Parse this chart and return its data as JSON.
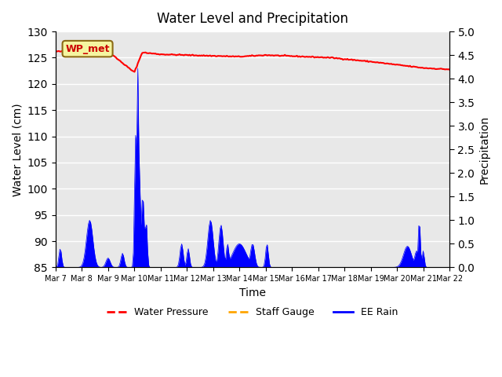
{
  "title": "Water Level and Precipitation",
  "xlabel": "Time",
  "ylabel_left": "Water Level (cm)",
  "ylabel_right": "Precipitation",
  "ylim_left": [
    85,
    130
  ],
  "ylim_right": [
    0.0,
    5.0
  ],
  "yticks_left": [
    85,
    90,
    95,
    100,
    105,
    110,
    115,
    120,
    125,
    130
  ],
  "yticks_right": [
    0.0,
    0.5,
    1.0,
    1.5,
    2.0,
    2.5,
    3.0,
    3.5,
    4.0,
    4.5,
    5.0
  ],
  "x_tick_labels": [
    "Mar 7",
    "Mar 8",
    "Mar 9",
    "Mar 10",
    "Mar 11",
    "Mar 12",
    "Mar 13",
    "Mar 14",
    "Mar 15",
    "Mar 16",
    "Mar 17",
    "Mar 18",
    "Mar 19",
    "Mar 20",
    "Mar 21",
    "Mar 22"
  ],
  "bg_color": "#e8e8e8",
  "wp_met_label": "WP_met",
  "wp_met_box_color": "#f5f5a0",
  "wp_met_border_color": "#8B6914",
  "wp_met_text_color": "#cc0000",
  "legend_labels": [
    "Water Pressure",
    "Staff Gauge",
    "EE Rain"
  ],
  "legend_colors": [
    "red",
    "orange",
    "blue"
  ],
  "water_pressure_color": "red",
  "ee_rain_color": "blue",
  "staff_gauge_color": "orange",
  "grid_color": "white",
  "n_days": 15,
  "n_pts": 360
}
